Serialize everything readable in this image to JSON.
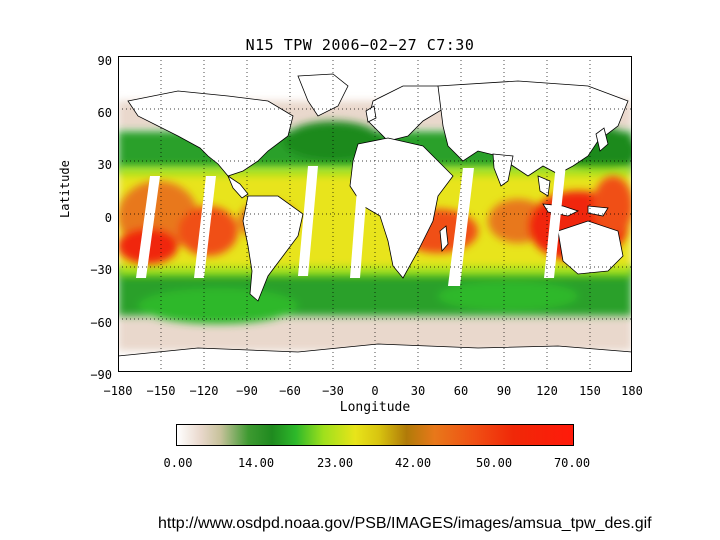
{
  "title": "N15 TPW 2006−02−27 C7:30",
  "axes": {
    "xlabel": "Longitude",
    "ylabel": "Latitude",
    "xticks": [
      "−180",
      "−150",
      "−120",
      "−90",
      "−60",
      "−30",
      "0",
      "30",
      "60",
      "90",
      "120",
      "150",
      "180"
    ],
    "yticks": [
      "90",
      "60",
      "30",
      "0",
      "−30",
      "−60",
      "−90"
    ]
  },
  "colorbar": {
    "ticks": [
      "0.00",
      "14.00",
      "23.00",
      "42.00",
      "50.00",
      "70.00"
    ]
  },
  "credit": "http://www.osdpd.noaa.gov/PSB/IMAGES/images/amsua_tpw_des.gif",
  "colors": {
    "dry": "#e9d8cc",
    "green": "#1f8a1f",
    "lightgreen": "#6ad42a",
    "yellow": "#e8e41a",
    "orange": "#e8781a",
    "red": "#f02808",
    "land": "#ffffff",
    "border": "#000000"
  }
}
